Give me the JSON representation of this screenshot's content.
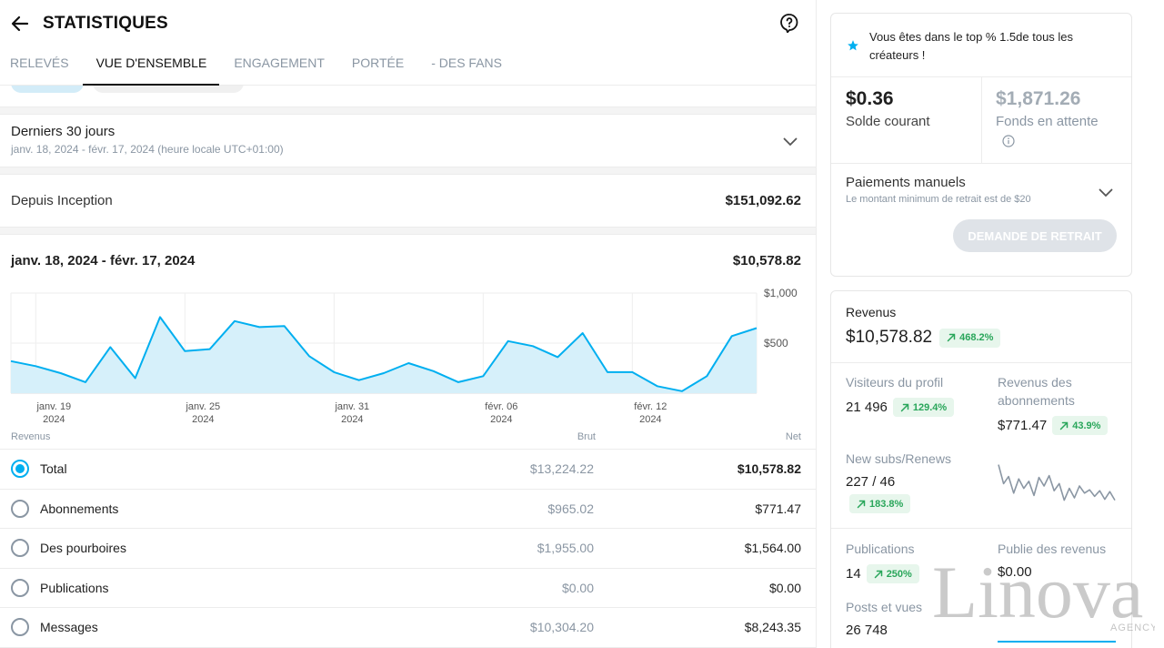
{
  "header": {
    "title": "STATISTIQUES"
  },
  "tabs": [
    {
      "label": "RELEVÉS",
      "active": false
    },
    {
      "label": "VUE D'ENSEMBLE",
      "active": true
    },
    {
      "label": "ENGAGEMENT",
      "active": false
    },
    {
      "label": "PORTÉE",
      "active": false
    },
    {
      "label": "- DES FANS",
      "active": false
    }
  ],
  "period": {
    "title": "Derniers 30 jours",
    "subtitle": "janv. 18, 2024 - févr. 17, 2024 (heure locale UTC+01:00)"
  },
  "since_inception": {
    "label": "Depuis Inception",
    "value": "$151,092.62"
  },
  "range": {
    "label": "janv. 18, 2024 - févr. 17, 2024",
    "value": "$10,578.82"
  },
  "chart_data": {
    "type": "area",
    "y_ticks": [
      "$1,000",
      "$500"
    ],
    "ylim": [
      0,
      1000
    ],
    "x_ticks": [
      {
        "day": "janv. 19",
        "year": "2024"
      },
      {
        "day": "janv. 25",
        "year": "2024"
      },
      {
        "day": "janv. 31",
        "year": "2024"
      },
      {
        "day": "févr. 06",
        "year": "2024"
      },
      {
        "day": "févr. 12",
        "year": "2024"
      }
    ],
    "x": [
      "2024-01-18",
      "2024-01-19",
      "2024-01-20",
      "2024-01-21",
      "2024-01-22",
      "2024-01-23",
      "2024-01-24",
      "2024-01-25",
      "2024-01-26",
      "2024-01-27",
      "2024-01-28",
      "2024-01-29",
      "2024-01-30",
      "2024-01-31",
      "2024-02-01",
      "2024-02-02",
      "2024-02-03",
      "2024-02-04",
      "2024-02-05",
      "2024-02-06",
      "2024-02-07",
      "2024-02-08",
      "2024-02-09",
      "2024-02-10",
      "2024-02-11",
      "2024-02-12",
      "2024-02-13",
      "2024-02-14",
      "2024-02-15",
      "2024-02-16",
      "2024-02-17"
    ],
    "values": [
      320,
      270,
      200,
      110,
      460,
      150,
      760,
      420,
      440,
      720,
      660,
      670,
      370,
      210,
      130,
      200,
      300,
      220,
      110,
      170,
      520,
      470,
      360,
      600,
      210,
      210,
      70,
      20,
      170,
      570,
      650
    ],
    "grid": true
  },
  "revenue_table": {
    "headers": {
      "name": "Revenus",
      "brut": "Brut",
      "net": "Net"
    },
    "rows": [
      {
        "name": "Total",
        "brut": "$13,224.22",
        "net": "$10,578.82",
        "selected": true
      },
      {
        "name": "Abonnements",
        "brut": "$965.02",
        "net": "$771.47",
        "selected": false
      },
      {
        "name": "Des pourboires",
        "brut": "$1,955.00",
        "net": "$1,564.00",
        "selected": false
      },
      {
        "name": "Publications",
        "brut": "$0.00",
        "net": "$0.00",
        "selected": false
      },
      {
        "name": "Messages",
        "brut": "$10,304.20",
        "net": "$8,243.35",
        "selected": false
      }
    ]
  },
  "sidebar": {
    "top_banner": "Vous êtes dans le top % 1.5de tous les créateurs !",
    "current_balance": {
      "amount": "$0.36",
      "label": "Solde courant"
    },
    "pending": {
      "amount": "$1,871.26",
      "label": "Fonds en attente"
    },
    "manual": {
      "title": "Paiements manuels",
      "subtitle": "Le montant minimum de retrait est de $20",
      "button": "DEMANDE DE RETRAIT"
    },
    "revenue": {
      "title": "Revenus",
      "amount": "$10,578.82",
      "badge": "468.2%",
      "stats": {
        "profile_visitors": {
          "label": "Visiteurs du profil",
          "value": "21 496",
          "badge": "129.4%"
        },
        "subscription_revenue": {
          "label": "Revenus des abonnements",
          "value": "$771.47",
          "badge": "43.9%"
        },
        "new_subs": {
          "label": "New subs/Renews",
          "value": "227 / 46",
          "badge": "183.8%"
        },
        "publications": {
          "label": "Publications",
          "value": "14",
          "badge": "250%"
        },
        "post_revenue": {
          "label": "Publie des revenus",
          "value": "$0.00"
        },
        "posts_views": {
          "label": "Posts et vues",
          "value": "26 748"
        }
      },
      "sparkline": [
        95,
        55,
        70,
        35,
        65,
        45,
        60,
        30,
        68,
        50,
        72,
        40,
        55,
        20,
        45,
        25,
        50,
        35,
        42,
        28,
        40,
        22,
        38,
        20
      ]
    }
  },
  "watermark": {
    "text": "Linova",
    "sub": "AGENCY"
  },
  "colors": {
    "accent": "#00aff0",
    "area_fill": "#d6f0fa",
    "positive": "#29a65a",
    "muted": "#8a96a3"
  }
}
